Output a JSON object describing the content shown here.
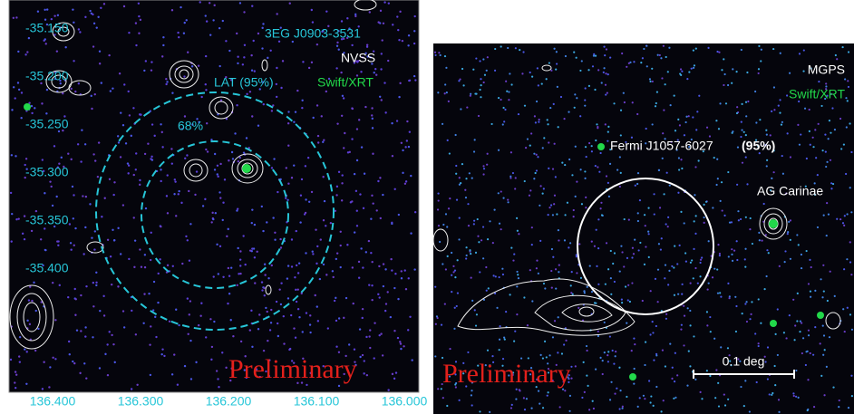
{
  "left_panel": {
    "legend": [
      "3EG J0903-3531",
      "NVSS",
      "Swift/XRT"
    ],
    "lat_label": "LAT (95%)",
    "inner_label": "68%",
    "y_ticks": [
      "-35.150",
      "-35.200",
      "-35.250",
      "-35.300",
      "-35.350",
      "-35.400"
    ],
    "x_ticks": [
      "136.400",
      "136.300",
      "136.200",
      "136.100",
      "136.000"
    ],
    "watermark": "Preliminary"
  },
  "right_panel": {
    "legend": [
      "MGPS",
      "Swift/XRT"
    ],
    "source_name": "Fermi J1057-6027",
    "source_conf": "(95%)",
    "star_label": "AG Carinae",
    "scale_label": "0.1 deg",
    "watermark": "Preliminary"
  }
}
